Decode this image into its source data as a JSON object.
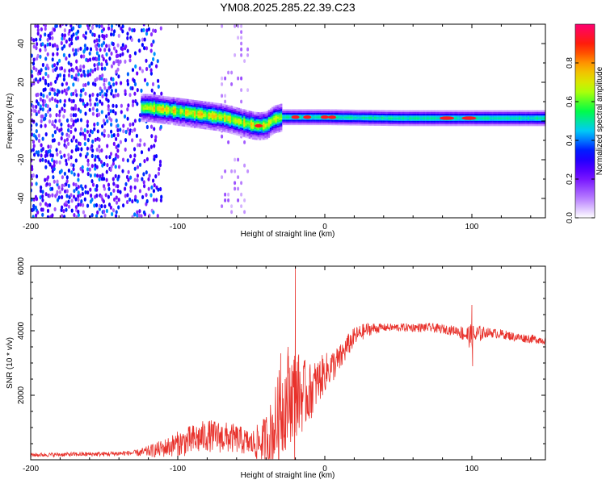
{
  "chart_data": [
    {
      "type": "heatmap",
      "title": "YM08.2025.285.22.39.C23",
      "xlabel": "Height of straight line (km)",
      "ylabel": "Frequency (Hz)",
      "xlim": [
        -200,
        150
      ],
      "ylim": [
        -50,
        50
      ],
      "x_ticks": [
        -200,
        -100,
        0,
        100
      ],
      "y_ticks": [
        -40,
        -20,
        0,
        20,
        40
      ],
      "ridge_frequency": {
        "x": [
          -120,
          -110,
          -100,
          -90,
          -80,
          -70,
          -60,
          -50,
          -45,
          -40,
          -35,
          -30,
          -20,
          0,
          50,
          100,
          150
        ],
        "y": [
          7,
          6,
          5,
          4,
          3,
          2,
          0,
          -2,
          -2.5,
          -2,
          1,
          2,
          2,
          2,
          1.5,
          1.5,
          1.5
        ]
      },
      "hot_spots_x": [
        -45,
        -20,
        -12,
        0,
        5,
        83,
        98
      ],
      "colorbar": {
        "label": "Normalized spectral amplitude",
        "ticks": [
          "0.0",
          "0.2",
          "0.4",
          "0.6",
          "0.8"
        ],
        "range": [
          0,
          1
        ],
        "colors": [
          "#ffffff",
          "#b070ff",
          "#6a00ff",
          "#0000ff",
          "#00c8ff",
          "#00ff40",
          "#c8ff00",
          "#ffb000",
          "#ff2000",
          "#ff0070"
        ]
      }
    },
    {
      "type": "line",
      "xlabel": "Height of straight line (km)",
      "ylabel": "SNR (10 * v/v)",
      "xlim": [
        -200,
        150
      ],
      "ylim": [
        0,
        6000
      ],
      "x_ticks": [
        -200,
        -100,
        0,
        100
      ],
      "y_ticks": [
        2000,
        4000,
        6000
      ],
      "color": "#e8322c",
      "envelope": {
        "x": [
          -200,
          -150,
          -125,
          -110,
          -100,
          -90,
          -80,
          -70,
          -60,
          -50,
          -42,
          -35,
          -30,
          -25,
          -20,
          -15,
          -10,
          -5,
          0,
          5,
          10,
          15,
          20,
          25,
          30,
          40,
          50,
          60,
          70,
          80,
          90,
          95,
          100,
          105,
          110,
          120,
          130,
          140,
          150
        ],
        "y": [
          150,
          180,
          220,
          350,
          500,
          600,
          750,
          700,
          650,
          500,
          550,
          900,
          1500,
          1900,
          2100,
          2000,
          2100,
          2400,
          2700,
          2900,
          3100,
          3500,
          3800,
          3950,
          4050,
          4100,
          4100,
          4100,
          4100,
          4050,
          4000,
          3900,
          3800,
          3900,
          3950,
          3900,
          3800,
          3750,
          3700
        ]
      },
      "noise_amplitude": {
        "x": [
          -200,
          -130,
          -110,
          -90,
          -70,
          -50,
          -40,
          -30,
          -20,
          -10,
          0,
          20,
          40,
          90,
          100,
          110,
          150
        ],
        "y": [
          60,
          80,
          280,
          500,
          500,
          400,
          800,
          1500,
          1400,
          900,
          600,
          300,
          120,
          150,
          400,
          150,
          130
        ]
      },
      "spikes": [
        {
          "x": -20,
          "y": 6000
        },
        {
          "x": -25,
          "y": 3500
        },
        {
          "x": -30,
          "y": 3300
        },
        {
          "x": -20.5,
          "y": 0
        },
        {
          "x": 100,
          "y": 4800
        },
        {
          "x": 100.5,
          "y": 2900
        }
      ]
    }
  ]
}
